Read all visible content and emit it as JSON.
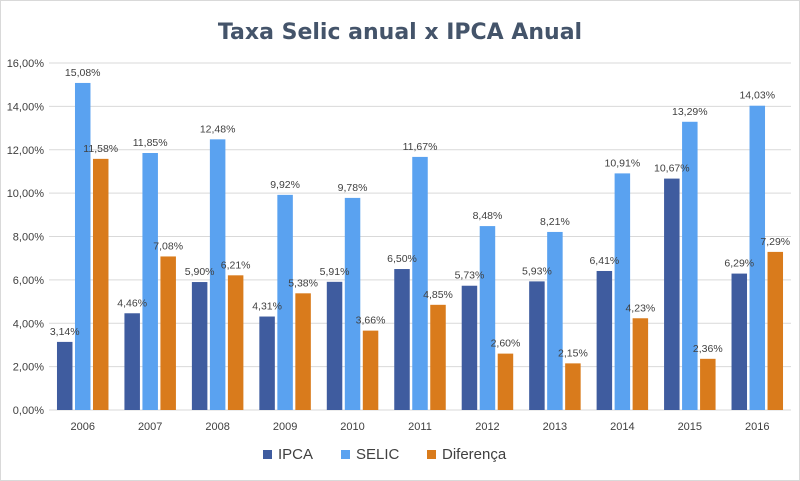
{
  "chart_data": {
    "type": "bar",
    "title": "Taxa Selic anual x IPCA Anual",
    "xlabel": "",
    "ylabel": "",
    "categories": [
      "2006",
      "2007",
      "2008",
      "2009",
      "2010",
      "2011",
      "2012",
      "2013",
      "2014",
      "2015",
      "2016"
    ],
    "series": [
      {
        "name": "IPCA",
        "color": "#3f5c9f",
        "values": [
          3.14,
          4.46,
          5.9,
          4.31,
          5.91,
          6.5,
          5.73,
          5.93,
          6.41,
          10.67,
          6.29
        ],
        "labels": [
          "3,14%",
          "4,46%",
          "5,90%",
          "4,31%",
          "5,91%",
          "6,50%",
          "5,73%",
          "5,93%",
          "6,41%",
          "10,67%",
          "6,29%"
        ]
      },
      {
        "name": "SELIC",
        "color": "#5aa2f0",
        "values": [
          15.08,
          11.85,
          12.48,
          9.92,
          9.78,
          11.67,
          8.48,
          8.21,
          10.91,
          13.29,
          14.03
        ],
        "labels": [
          "15,08%",
          "11,85%",
          "12,48%",
          "9,92%",
          "9,78%",
          "11,67%",
          "8,48%",
          "8,21%",
          "10,91%",
          "13,29%",
          "14,03%"
        ]
      },
      {
        "name": "Diferença",
        "color": "#d97b1c",
        "values": [
          11.58,
          7.08,
          6.21,
          5.38,
          3.66,
          4.85,
          2.6,
          2.15,
          4.23,
          2.36,
          7.29
        ],
        "labels": [
          "11,58%",
          "7,08%",
          "6,21%",
          "5,38%",
          "3,66%",
          "4,85%",
          "2,60%",
          "2,15%",
          "4,23%",
          "2,36%",
          "7,29%"
        ]
      }
    ],
    "ylim": [
      0,
      16
    ],
    "yticks": [
      0,
      2,
      4,
      6,
      8,
      10,
      12,
      14,
      16
    ],
    "ytick_labels": [
      "0,00%",
      "2,00%",
      "4,00%",
      "6,00%",
      "8,00%",
      "10,00%",
      "12,00%",
      "14,00%",
      "16,00%"
    ],
    "grid": true,
    "legend_position": "bottom"
  }
}
